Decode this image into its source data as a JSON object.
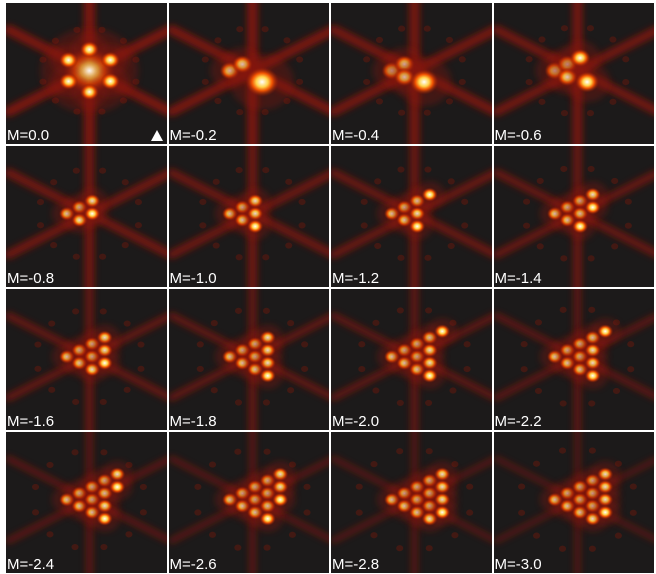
{
  "panels": [
    {
      "label": "M=0.0"
    },
    {
      "label": "M=-0.2"
    },
    {
      "label": "M=-0.4"
    },
    {
      "label": "M=-0.6"
    },
    {
      "label": "M=-0.8"
    },
    {
      "label": "M=-1.0"
    },
    {
      "label": "M=-1.2"
    },
    {
      "label": "M=-1.4"
    },
    {
      "label": "M=-1.6"
    },
    {
      "label": "M=-1.8"
    },
    {
      "label": "M=-2.0"
    },
    {
      "label": "M=-2.2"
    },
    {
      "label": "M=-2.4"
    },
    {
      "label": "M=-2.6"
    },
    {
      "label": "M=-2.8"
    },
    {
      "label": "M=-3.0"
    }
  ],
  "marker_icon": "triangle-up-icon",
  "colors": {
    "background": "#1c1a1a",
    "hot_core": "#ffffff",
    "glow": "#ff5a00",
    "dim": "#8a1808",
    "label": "#ffffff"
  }
}
